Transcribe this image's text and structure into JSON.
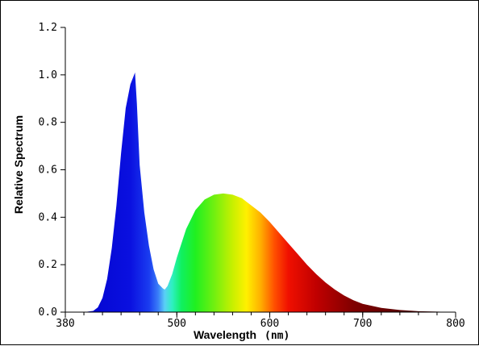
{
  "chart_data": {
    "type": "area",
    "xlabel": "Wavelength",
    "xlabel_unit": "(nm)",
    "ylabel": "Relative Spectrum",
    "xlim": [
      380,
      800
    ],
    "ylim": [
      0.0,
      1.2
    ],
    "x_ticks": [
      "380",
      "500",
      "600",
      "700",
      "800"
    ],
    "y_ticks": [
      "0.0",
      "0.2",
      "0.4",
      "0.6",
      "0.8",
      "1.0",
      "1.2"
    ],
    "grid": false,
    "fill": "visible-spectrum gradient by wavelength",
    "x": [
      380,
      400,
      410,
      415,
      420,
      425,
      430,
      435,
      440,
      445,
      450,
      452,
      455,
      457,
      460,
      465,
      470,
      475,
      480,
      485,
      487,
      490,
      495,
      500,
      510,
      520,
      530,
      540,
      550,
      560,
      570,
      580,
      590,
      600,
      610,
      620,
      630,
      640,
      650,
      660,
      670,
      680,
      690,
      700,
      720,
      740,
      760,
      780,
      800
    ],
    "y": [
      0.0,
      0.0,
      0.005,
      0.02,
      0.06,
      0.14,
      0.27,
      0.45,
      0.67,
      0.86,
      0.96,
      0.98,
      1.01,
      0.88,
      0.62,
      0.42,
      0.28,
      0.18,
      0.12,
      0.1,
      0.095,
      0.11,
      0.16,
      0.23,
      0.35,
      0.43,
      0.475,
      0.495,
      0.5,
      0.495,
      0.48,
      0.45,
      0.42,
      0.38,
      0.335,
      0.29,
      0.245,
      0.2,
      0.16,
      0.125,
      0.095,
      0.07,
      0.05,
      0.035,
      0.018,
      0.009,
      0.004,
      0.002,
      0.0
    ]
  }
}
